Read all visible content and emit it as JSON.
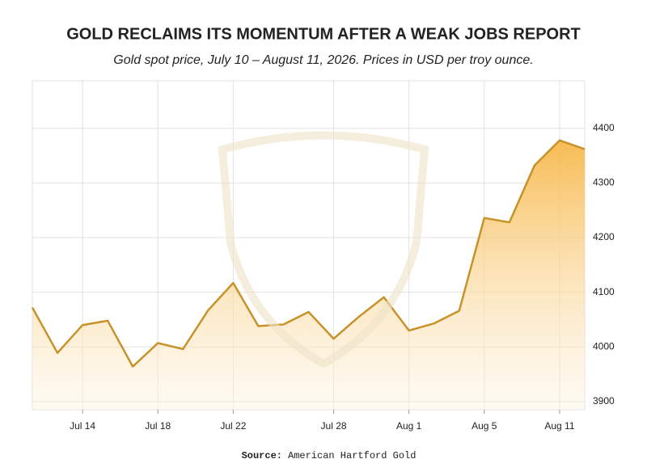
{
  "chart_data": {
    "type": "area",
    "title": "GOLD RECLAIMS ITS MOMENTUM AFTER A WEAK JOBS REPORT",
    "subtitle": "Gold spot price, July 10 – August 11, 2026. Prices in USD per troy ounce.",
    "source_label": "Source:",
    "source": "American Hartford Gold",
    "categories": [
      null,
      null,
      "Jul 14",
      null,
      null,
      "Jul 18",
      null,
      null,
      "Jul 22",
      null,
      null,
      null,
      "Jul 28",
      null,
      null,
      "Aug 1",
      null,
      null,
      "Aug 5",
      null,
      null,
      "Aug 11",
      null
    ],
    "values": [
      4072,
      3989,
      4040,
      4048,
      3964,
      4007,
      3996,
      4067,
      4117,
      4038,
      4041,
      4064,
      4015,
      4055,
      4091,
      4030,
      4043,
      4066,
      4236,
      4228,
      4332,
      4378,
      4362
    ],
    "color": "#c8922a",
    "ylim": [
      3885,
      4487
    ],
    "yticks": [
      3900,
      4000,
      4100,
      4200,
      4300,
      4400
    ],
    "grid": true
  }
}
